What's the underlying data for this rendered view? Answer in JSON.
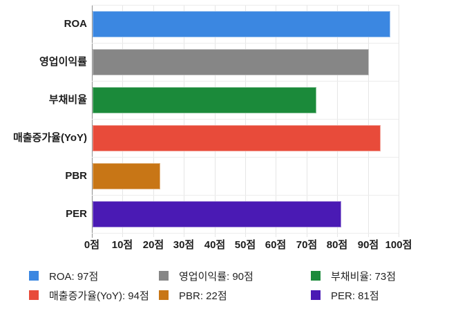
{
  "chart_data": {
    "type": "bar",
    "orientation": "horizontal",
    "title": "",
    "categories": [
      "ROA",
      "영업이익률",
      "부채비율",
      "매출증가율(YoY)",
      "PBR",
      "PER"
    ],
    "values": [
      97,
      90,
      73,
      94,
      22,
      81
    ],
    "value_suffix": "점",
    "colors": [
      "#3B87E1",
      "#868686",
      "#1B8A3A",
      "#E84B3A",
      "#C87616",
      "#4A1AB4"
    ],
    "xlim": [
      0,
      100
    ],
    "x_ticks": [
      0,
      10,
      20,
      30,
      40,
      50,
      60,
      70,
      80,
      90,
      100
    ],
    "x_tick_labels": [
      "0점",
      "10점",
      "20점",
      "30점",
      "40점",
      "50점",
      "60점",
      "70점",
      "80점",
      "90점",
      "100점"
    ],
    "grid": true,
    "legend_position": "bottom",
    "legend": [
      {
        "label": "ROA: 97점",
        "color": "#3B87E1"
      },
      {
        "label": "영업이익률: 90점",
        "color": "#868686"
      },
      {
        "label": "부채비율: 73점",
        "color": "#1B8A3A"
      },
      {
        "label": "매출증가율(YoY): 94점",
        "color": "#E84B3A"
      },
      {
        "label": "PBR: 22점",
        "color": "#C87616"
      },
      {
        "label": "PER: 81점",
        "color": "#4A1AB4"
      }
    ]
  }
}
